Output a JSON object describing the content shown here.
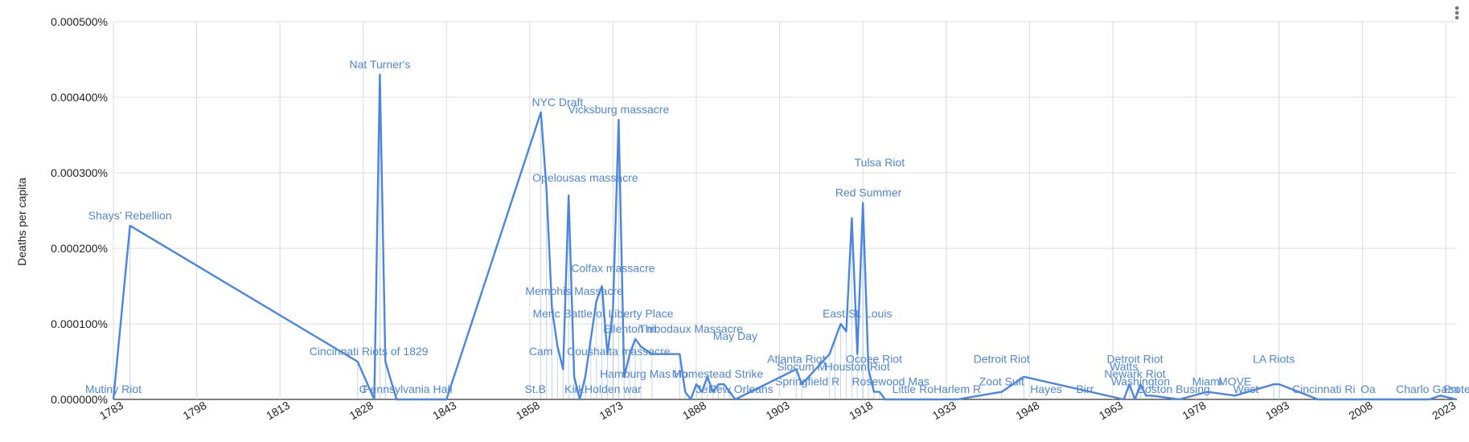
{
  "colors": {
    "series": "#4a86e0",
    "annotation": "#4f86d8",
    "grid": "#dcdcdc",
    "menu": "#777777"
  },
  "menu": {
    "icon": "kebab-menu-icon"
  },
  "chart_data": {
    "type": "line",
    "title": "",
    "xlabel": "",
    "ylabel": "Deaths per capita",
    "xlim": [
      1783,
      2025
    ],
    "ylim": [
      0,
      5e-06
    ],
    "x_ticks": [
      1783,
      1798,
      1813,
      1828,
      1843,
      1858,
      1873,
      1888,
      1903,
      1918,
      1933,
      1948,
      1963,
      1978,
      1993,
      2008,
      2023
    ],
    "y_ticks": [
      {
        "value": 0,
        "label": "0.000000%"
      },
      {
        "value": 1e-06,
        "label": "0.000100%"
      },
      {
        "value": 2e-06,
        "label": "0.000200%"
      },
      {
        "value": 3e-06,
        "label": "0.000300%"
      },
      {
        "value": 4e-06,
        "label": "0.000400%"
      },
      {
        "value": 5e-06,
        "label": "0.000500%"
      }
    ],
    "grid": true,
    "legend": "none",
    "series": [
      {
        "x": [
          1783,
          1786,
          1827,
          1830,
          1831,
          1832,
          1834,
          1837,
          1843,
          1860,
          1861,
          1862,
          1863,
          1864,
          1865,
          1866,
          1867,
          1868,
          1869,
          1870,
          1871,
          1872,
          1873,
          1874,
          1875,
          1876,
          1877,
          1878,
          1880,
          1885,
          1886,
          1887,
          1888,
          1889,
          1890,
          1891,
          1892,
          1893,
          1894,
          1895,
          1906,
          1907,
          1912,
          1913,
          1914,
          1915,
          1916,
          1917,
          1918,
          1919,
          1920,
          1921,
          1922,
          1923,
          1925,
          1935,
          1943,
          1947,
          1965,
          1966,
          1967,
          1968,
          1969,
          1970,
          1975,
          1980,
          1985,
          1992,
          1993,
          2000,
          2020,
          2022,
          2025
        ],
        "y": [
          0,
          2.3e-06,
          5e-07,
          0,
          4.3e-06,
          5e-07,
          0,
          0,
          0,
          3.8e-06,
          2.8e-06,
          1.2e-06,
          7e-07,
          4e-07,
          2.7e-06,
          3e-07,
          0,
          3e-07,
          8e-07,
          1.3e-06,
          1.5e-06,
          6e-07,
          1.2e-06,
          3.7e-06,
          3e-07,
          6e-07,
          8e-07,
          7e-07,
          6e-07,
          6e-07,
          1e-07,
          0,
          2e-07,
          1e-07,
          3e-07,
          1e-07,
          2e-07,
          2e-07,
          1e-07,
          0,
          4e-07,
          2e-07,
          6e-07,
          8e-07,
          1e-06,
          9e-07,
          2.4e-06,
          6e-07,
          2.6e-06,
          4e-07,
          1e-07,
          1e-07,
          0,
          0,
          0,
          0,
          1e-07,
          3e-07,
          0,
          2e-07,
          0,
          2e-07,
          5e-08,
          5e-08,
          0,
          1e-07,
          5e-08,
          2e-07,
          2e-07,
          0,
          0,
          5e-08,
          0
        ]
      }
    ],
    "annotations": [
      {
        "text": "Mutiny Riot",
        "x": 1783,
        "y": 0
      },
      {
        "text": "Shays' Rebellion",
        "x": 1786,
        "y": 2.3e-06
      },
      {
        "text": "Cincinnati Riots of 1829",
        "x": 1829,
        "y": 5e-07
      },
      {
        "text": "Nat Turner's",
        "x": 1831,
        "y": 4.3e-06
      },
      {
        "text": "C",
        "x": 1828,
        "y": 0
      },
      {
        "text": "Pennsylvania Hall",
        "x": 1836,
        "y": 0
      },
      {
        "text": "NYC Draft",
        "x": 1863,
        "y": 3.8e-06
      },
      {
        "text": "Vicksburg massacre",
        "x": 1874,
        "y": 3.7e-06
      },
      {
        "text": "Opelousas massacre",
        "x": 1868,
        "y": 2.8e-06
      },
      {
        "text": "Colfax massacre",
        "x": 1873,
        "y": 1.6e-06
      },
      {
        "text": "Memphis Massacre",
        "x": 1866,
        "y": 1.3e-06
      },
      {
        "text": "Meric",
        "x": 1861,
        "y": 1e-06
      },
      {
        "text": "Battle of Liberty Place",
        "x": 1874,
        "y": 1e-06
      },
      {
        "text": "Ellenton m",
        "x": 1876,
        "y": 8e-07
      },
      {
        "text": "Thibodaux Massacre",
        "x": 1887,
        "y": 8e-07
      },
      {
        "text": "Cam",
        "x": 1860,
        "y": 5e-07
      },
      {
        "text": "Coushatta massacre",
        "x": 1874,
        "y": 5e-07
      },
      {
        "text": "St.B",
        "x": 1859,
        "y": 0
      },
      {
        "text": "Kirk",
        "x": 1866,
        "y": 0
      },
      {
        "text": "Holden war",
        "x": 1873,
        "y": 0
      },
      {
        "text": "Hamburg Mas",
        "x": 1877,
        "y": 2e-07
      },
      {
        "text": "Mo",
        "x": 1885,
        "y": 2e-07
      },
      {
        "text": "May Day",
        "x": 1895,
        "y": 7e-07
      },
      {
        "text": "Homestead Strike",
        "x": 1892,
        "y": 2e-07
      },
      {
        "text": "Je",
        "x": 1889,
        "y": 0
      },
      {
        "text": "P",
        "x": 1891,
        "y": 0
      },
      {
        "text": "New Orleans",
        "x": 1896,
        "y": 0
      },
      {
        "text": "Atlanta Riot",
        "x": 1906,
        "y": 4e-07
      },
      {
        "text": "Slocum M",
        "x": 1907,
        "y": 3e-07
      },
      {
        "text": "Springfield R",
        "x": 1908,
        "y": 1e-07
      },
      {
        "text": "East St. Louis",
        "x": 1917,
        "y": 1e-06
      },
      {
        "text": "Tulsa Riot",
        "x": 1921,
        "y": 3e-06
      },
      {
        "text": "Red Summer",
        "x": 1919,
        "y": 2.6e-06
      },
      {
        "text": "Ocoee Riot",
        "x": 1920,
        "y": 4e-07
      },
      {
        "text": "Houston Riot",
        "x": 1917,
        "y": 3e-07
      },
      {
        "text": "Rosewood Mas",
        "x": 1923,
        "y": 1e-07
      },
      {
        "text": "Little Ro",
        "x": 1927,
        "y": 0
      },
      {
        "text": "Harlem R",
        "x": 1935,
        "y": 0
      },
      {
        "text": "Detroit Riot",
        "x": 1943,
        "y": 4e-07
      },
      {
        "text": "Zoot Suit",
        "x": 1943,
        "y": 1e-07
      },
      {
        "text": "Hayes",
        "x": 1951,
        "y": 0
      },
      {
        "text": "Birr",
        "x": 1958,
        "y": 0
      },
      {
        "text": "Watts",
        "x": 1965,
        "y": 3e-07
      },
      {
        "text": "Detroit Riot",
        "x": 1967,
        "y": 4e-07
      },
      {
        "text": "Newark Riot",
        "x": 1967,
        "y": 2e-07
      },
      {
        "text": "Washington",
        "x": 1968,
        "y": 1e-07
      },
      {
        "text": "Boston Busing",
        "x": 1974,
        "y": 0
      },
      {
        "text": "Miami",
        "x": 1980,
        "y": 1e-07
      },
      {
        "text": "MOVE",
        "x": 1985,
        "y": 1e-07
      },
      {
        "text": "West",
        "x": 1987,
        "y": 0
      },
      {
        "text": "LA Riots",
        "x": 1992,
        "y": 4e-07
      },
      {
        "text": "Cincinnati Ri",
        "x": 2001,
        "y": 0
      },
      {
        "text": "Oa",
        "x": 2009,
        "y": 0
      },
      {
        "text": "Charlo",
        "x": 2017,
        "y": 0
      },
      {
        "text": "Gaza",
        "x": 2023,
        "y": 0
      },
      {
        "text": "Prote",
        "x": 2025,
        "y": 0
      }
    ]
  }
}
